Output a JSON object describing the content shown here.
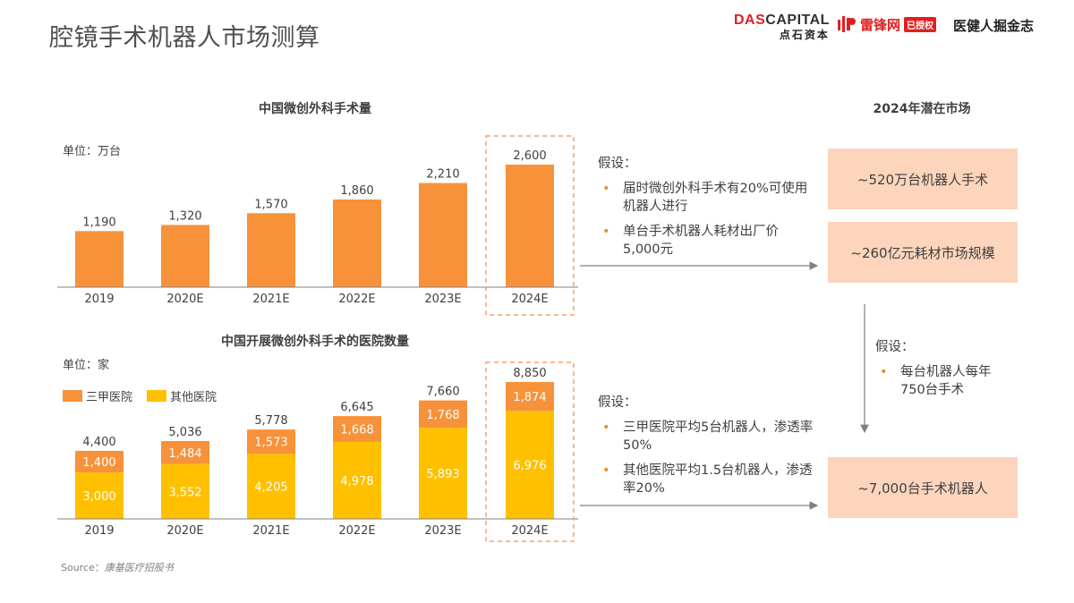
{
  "title": "腔镜手术机器人市场测算",
  "logos": {
    "das_capital": "DASCAPITAL",
    "das_capital_cn": "点石资本",
    "leifeng": "雷锋网",
    "leifeng_badge": "已授权",
    "vcbeat": "医健人掘金志"
  },
  "colors": {
    "orange": "#f7923a",
    "gold": "#ffc000",
    "peach": "#fcd5bc",
    "dash": "#f4a46e",
    "bullet": "#f08a2a"
  },
  "chart_data": [
    {
      "type": "bar",
      "title": "中国微创外科手术量",
      "unit": "单位：万台",
      "categories": [
        "2019",
        "2020E",
        "2021E",
        "2022E",
        "2023E",
        "2024E"
      ],
      "values": [
        1190,
        1320,
        1570,
        1860,
        2210,
        2600
      ],
      "value_labels": [
        "1,190",
        "1,320",
        "1,570",
        "1,860",
        "2,210",
        "2,600"
      ],
      "highlight_category": "2024E",
      "ylim": [
        0,
        2800
      ]
    },
    {
      "type": "bar",
      "stacked": true,
      "title": "中国开展微创外科手术的医院数量",
      "unit": "单位：家",
      "categories": [
        "2019",
        "2020E",
        "2021E",
        "2022E",
        "2023E",
        "2024E"
      ],
      "series": [
        {
          "name": "其他医院",
          "values": [
            3000,
            3552,
            4205,
            4978,
            5893,
            6976
          ],
          "labels": [
            "3,000",
            "3,552",
            "4,205",
            "4,978",
            "5,893",
            "6,976"
          ]
        },
        {
          "name": "三甲医院",
          "values": [
            1400,
            1484,
            1573,
            1668,
            1768,
            1874
          ],
          "labels": [
            "1,400",
            "1,484",
            "1,573",
            "1,668",
            "1,768",
            "1,874"
          ]
        }
      ],
      "totals": [
        4400,
        5036,
        5778,
        6645,
        7660,
        8850
      ],
      "total_labels": [
        "4,400",
        "5,036",
        "5,778",
        "6,645",
        "7,660",
        "8,850"
      ],
      "legend": [
        "三甲医院",
        "其他医院"
      ],
      "highlight_category": "2024E",
      "ylim": [
        0,
        9500
      ]
    }
  ],
  "assumptions_top": {
    "heading": "假设：",
    "items": [
      "届时微创外科手术有20%可使用机器人进行",
      "单台手术机器人耗材出厂价5,000元"
    ]
  },
  "assumptions_bottom": {
    "heading": "假设：",
    "items": [
      "三甲医院平均5台机器人，渗透率50%",
      "其他医院平均1.5台机器人，渗透率20%"
    ]
  },
  "market": {
    "title": "2024年潜在市场",
    "box1": "~520万台机器人手术",
    "box2": "~260亿元耗材市场规模",
    "assumption_heading": "假设：",
    "assumption_item": "每台机器人每年750台手术",
    "box3": "~7,000台手术机器人"
  },
  "source": {
    "label": "Source：",
    "value": "康基医疗招股书"
  }
}
